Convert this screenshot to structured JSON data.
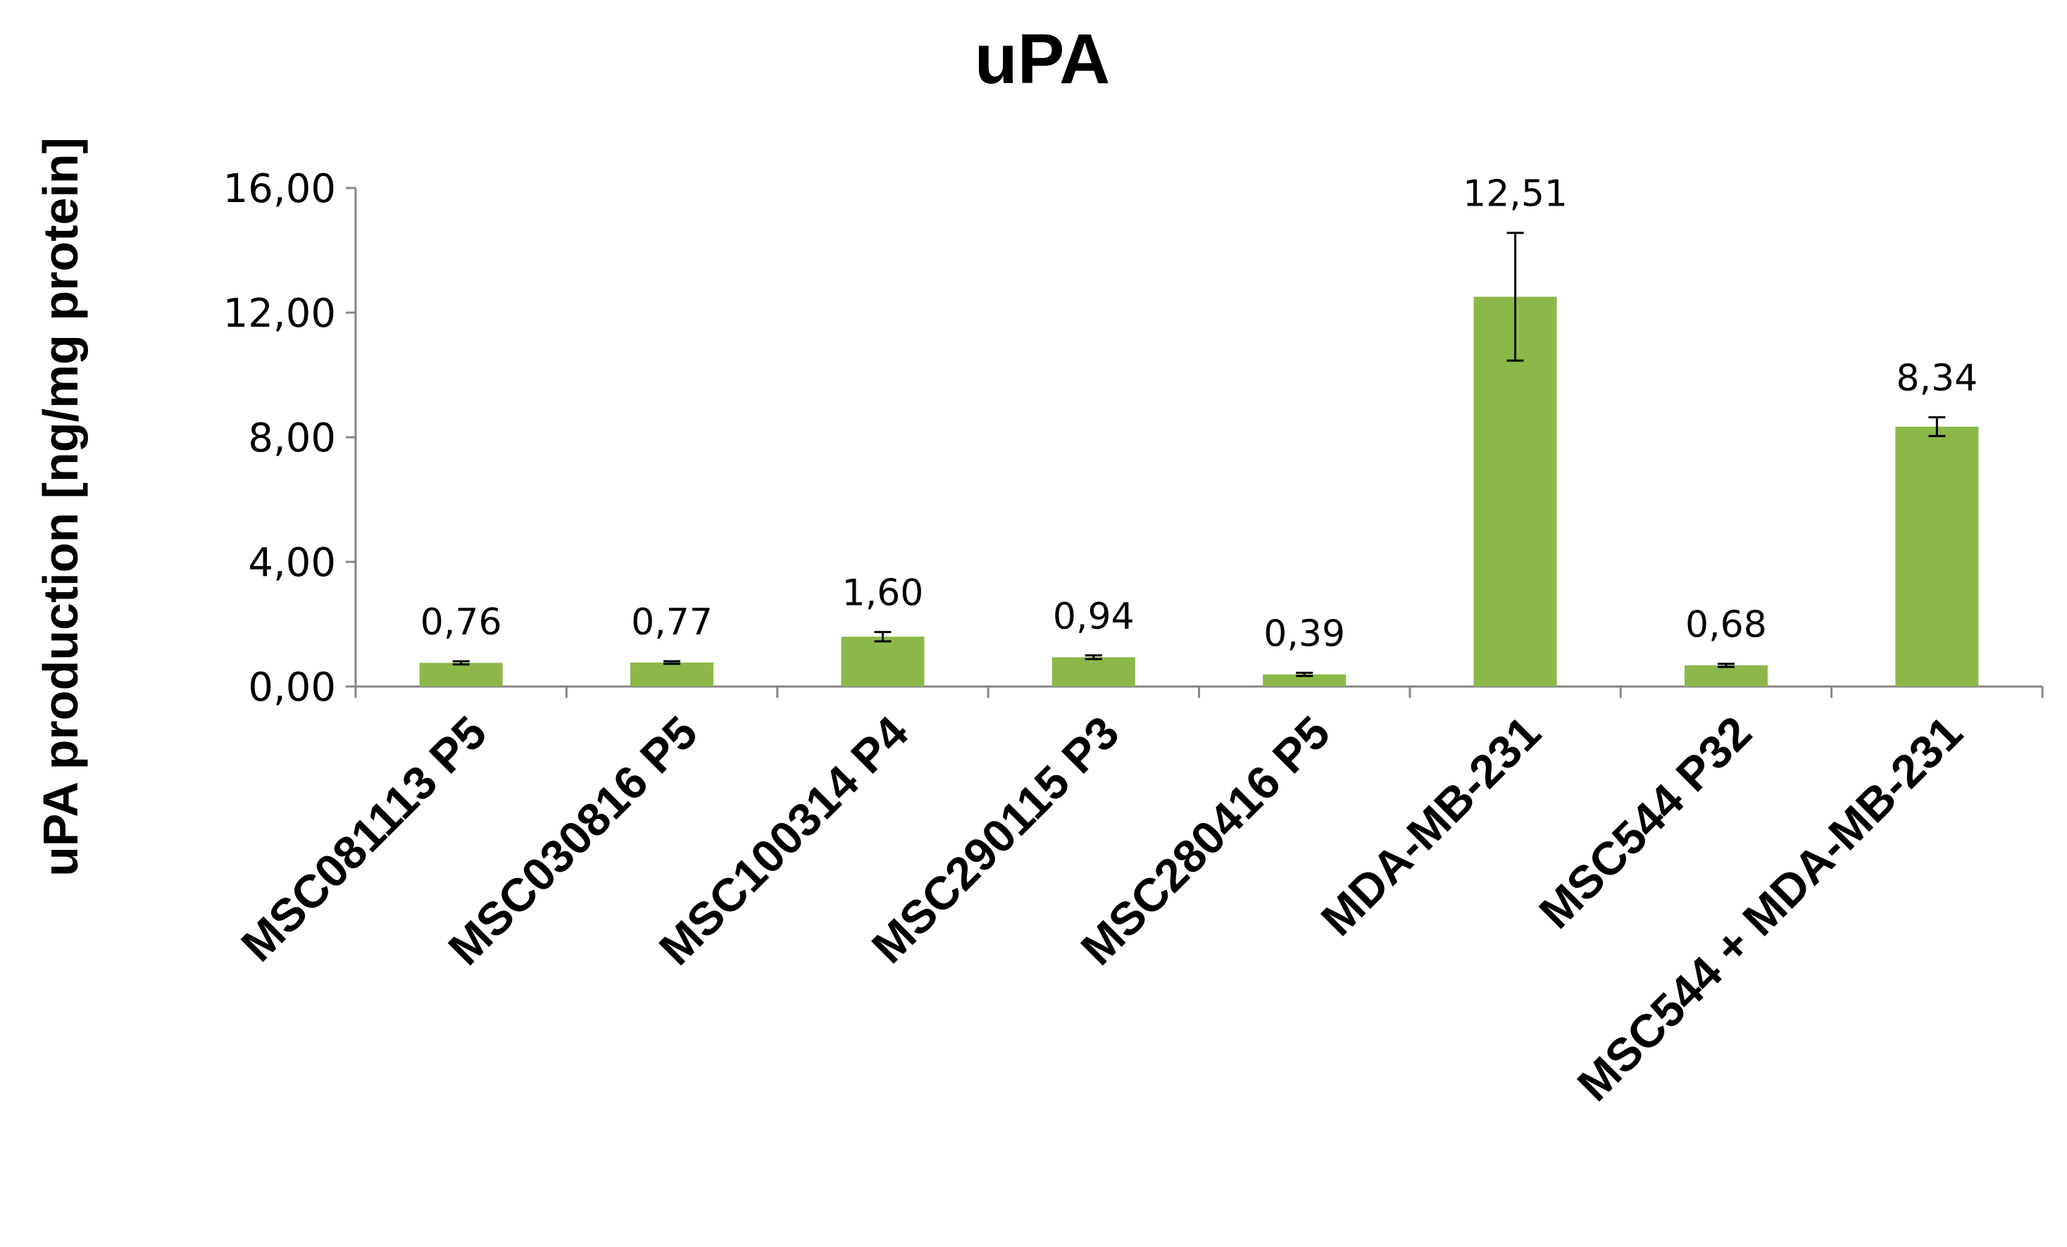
{
  "chart_data": {
    "type": "bar",
    "title": "uPA",
    "xlabel": "",
    "ylabel": "uPA production [ng/mg protein]",
    "ylim": [
      0,
      16
    ],
    "yticks": [
      "0,00",
      "4,00",
      "8,00",
      "12,00",
      "16,00"
    ],
    "grid": false,
    "legend": "none",
    "bar_color": "#8cb84a",
    "categories": [
      "MSC081113 P5",
      "MSC030816 P5",
      "MSC100314 P4",
      "MSC290115 P3",
      "MSC280416 P5",
      "MDA-MB-231",
      "MSC544 P32",
      "MSC544 + MDA-MB-231"
    ],
    "values": [
      0.76,
      0.77,
      1.6,
      0.94,
      0.39,
      12.51,
      0.68,
      8.34
    ],
    "value_labels": [
      "0,76",
      "0,77",
      "1,60",
      "0,94",
      "0,39",
      "12,51",
      "0,68",
      "8,34"
    ],
    "errors": [
      0.05,
      0.04,
      0.15,
      0.06,
      0.05,
      2.05,
      0.05,
      0.3
    ]
  }
}
